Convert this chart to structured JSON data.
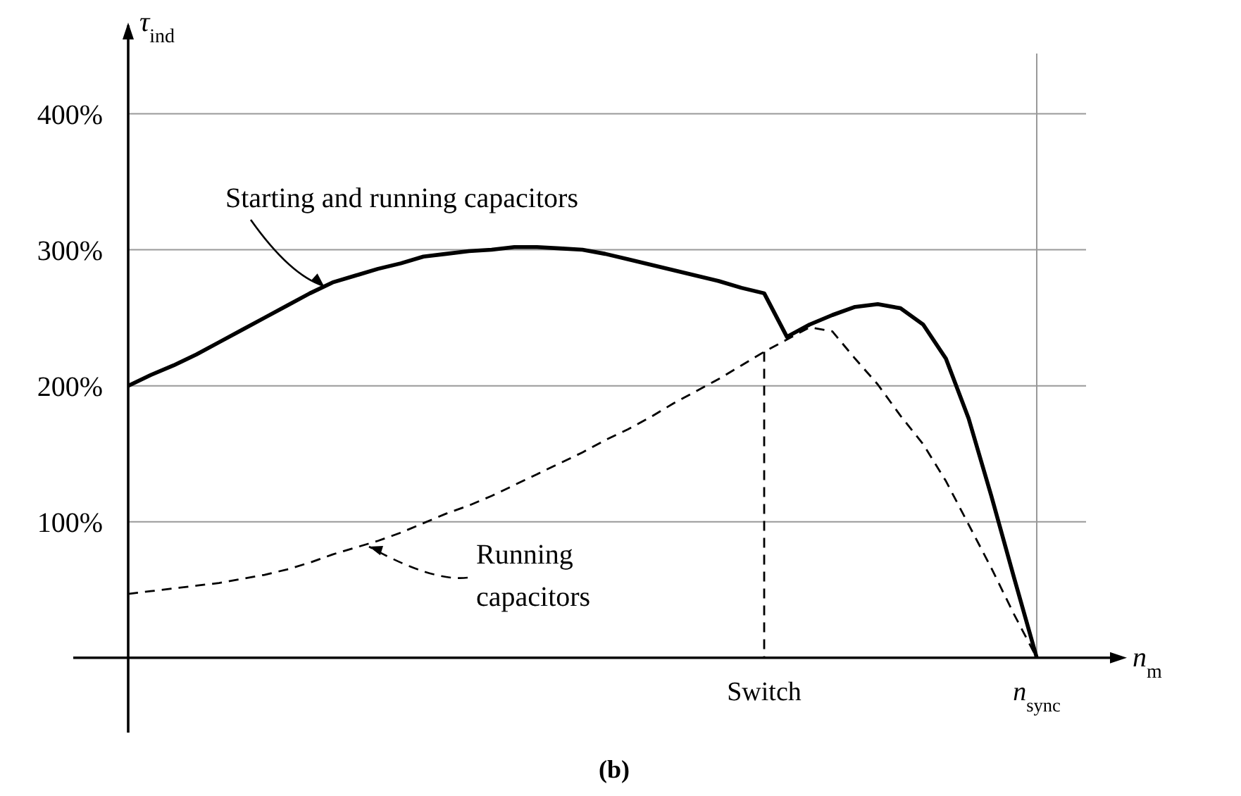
{
  "chart_data": {
    "type": "line",
    "xlabel": "n$_{m}$",
    "ylabel": "τ$_{ind}$",
    "categories": [
      null,
      null,
      null,
      null,
      null,
      null,
      null,
      null,
      null,
      null,
      null,
      null,
      null,
      null,
      null,
      null,
      null,
      null,
      null,
      null,
      null,
      null,
      null,
      null,
      null,
      null,
      null,
      null,
      "Switch",
      null,
      null,
      null,
      null,
      null,
      null,
      null,
      null,
      null,
      null,
      null,
      "n$_{sync}$"
    ],
    "ylim": [
      -55,
      465
    ],
    "yticks": [
      {
        "value": 100,
        "label": "100%"
      },
      {
        "value": 200,
        "label": "200%"
      },
      {
        "value": 300,
        "label": "300%"
      },
      {
        "value": 400,
        "label": "400%"
      }
    ],
    "grid": "y",
    "series": [
      {
        "name": "Starting and running capacitors",
        "color": "#000000",
        "line_style": "solid",
        "values": [
          200,
          208,
          215,
          223,
          232,
          241,
          250,
          259,
          268,
          276,
          281,
          286,
          290,
          295,
          297,
          299,
          300,
          302,
          302,
          301,
          300,
          297,
          293,
          289,
          285,
          281,
          277,
          272,
          268,
          236,
          245,
          252,
          258,
          260,
          257,
          245,
          220,
          176,
          119,
          59,
          0
        ]
      },
      {
        "name": "Running\ncapacitors",
        "color": "#000000",
        "line_style": "dashed",
        "values": [
          47,
          49,
          51,
          53,
          55,
          58,
          61,
          65,
          70,
          76,
          81,
          86,
          92,
          99,
          106,
          112,
          119,
          127,
          135,
          143,
          151,
          160,
          168,
          177,
          187,
          196,
          205,
          215,
          225,
          234,
          243,
          240,
          220,
          201,
          178,
          157,
          130,
          98,
          66,
          32,
          0
        ]
      }
    ],
    "ref_lines": [
      {
        "axis": "x",
        "value": "Switch",
        "color": "#000000",
        "line_style": "dashed"
      },
      {
        "axis": "x",
        "value": "n$_{sync}$",
        "color": "#999999"
      }
    ],
    "annotations": [
      "(b)"
    ]
  }
}
